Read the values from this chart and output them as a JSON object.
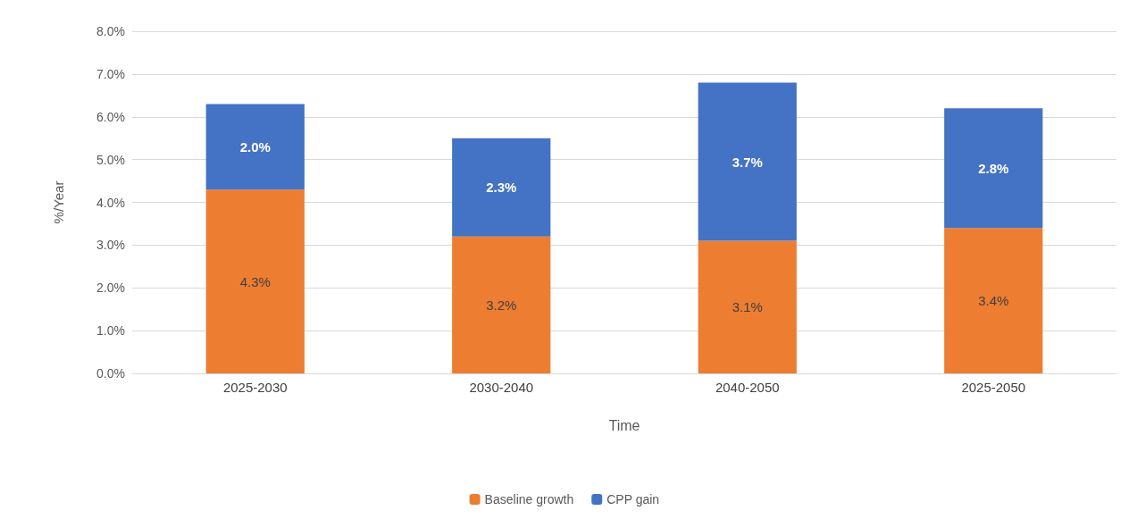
{
  "chart_data": {
    "type": "bar",
    "stacked": true,
    "categories": [
      "2025-2030",
      "2030-2040",
      "2040-2050",
      "2025-2050"
    ],
    "series": [
      {
        "name": "Baseline growth",
        "color": "#ed7d31",
        "values": [
          4.3,
          3.2,
          3.1,
          3.4
        ],
        "value_labels": [
          "4.3%",
          "3.2%",
          "3.1%",
          "3.4%"
        ]
      },
      {
        "name": "CPP gain",
        "color": "#4472c4",
        "values": [
          2.0,
          2.3,
          3.7,
          2.8
        ],
        "value_labels": [
          "2.0%",
          "2.3%",
          "3.7%",
          "2.8%"
        ]
      }
    ],
    "xlabel": "Time",
    "ylabel": "%/Year",
    "ylim": [
      0,
      8
    ],
    "yticks": [
      {
        "value": 0,
        "label": "0.0%"
      },
      {
        "value": 1,
        "label": "1.0%"
      },
      {
        "value": 2,
        "label": "2.0%"
      },
      {
        "value": 3,
        "label": "3.0%"
      },
      {
        "value": 4,
        "label": "4.0%"
      },
      {
        "value": 5,
        "label": "5.0%"
      },
      {
        "value": 6,
        "label": "6.0%"
      },
      {
        "value": 7,
        "label": "7.0%"
      },
      {
        "value": 8,
        "label": "8.0%"
      }
    ],
    "grid": "y",
    "legend": "bottom"
  }
}
